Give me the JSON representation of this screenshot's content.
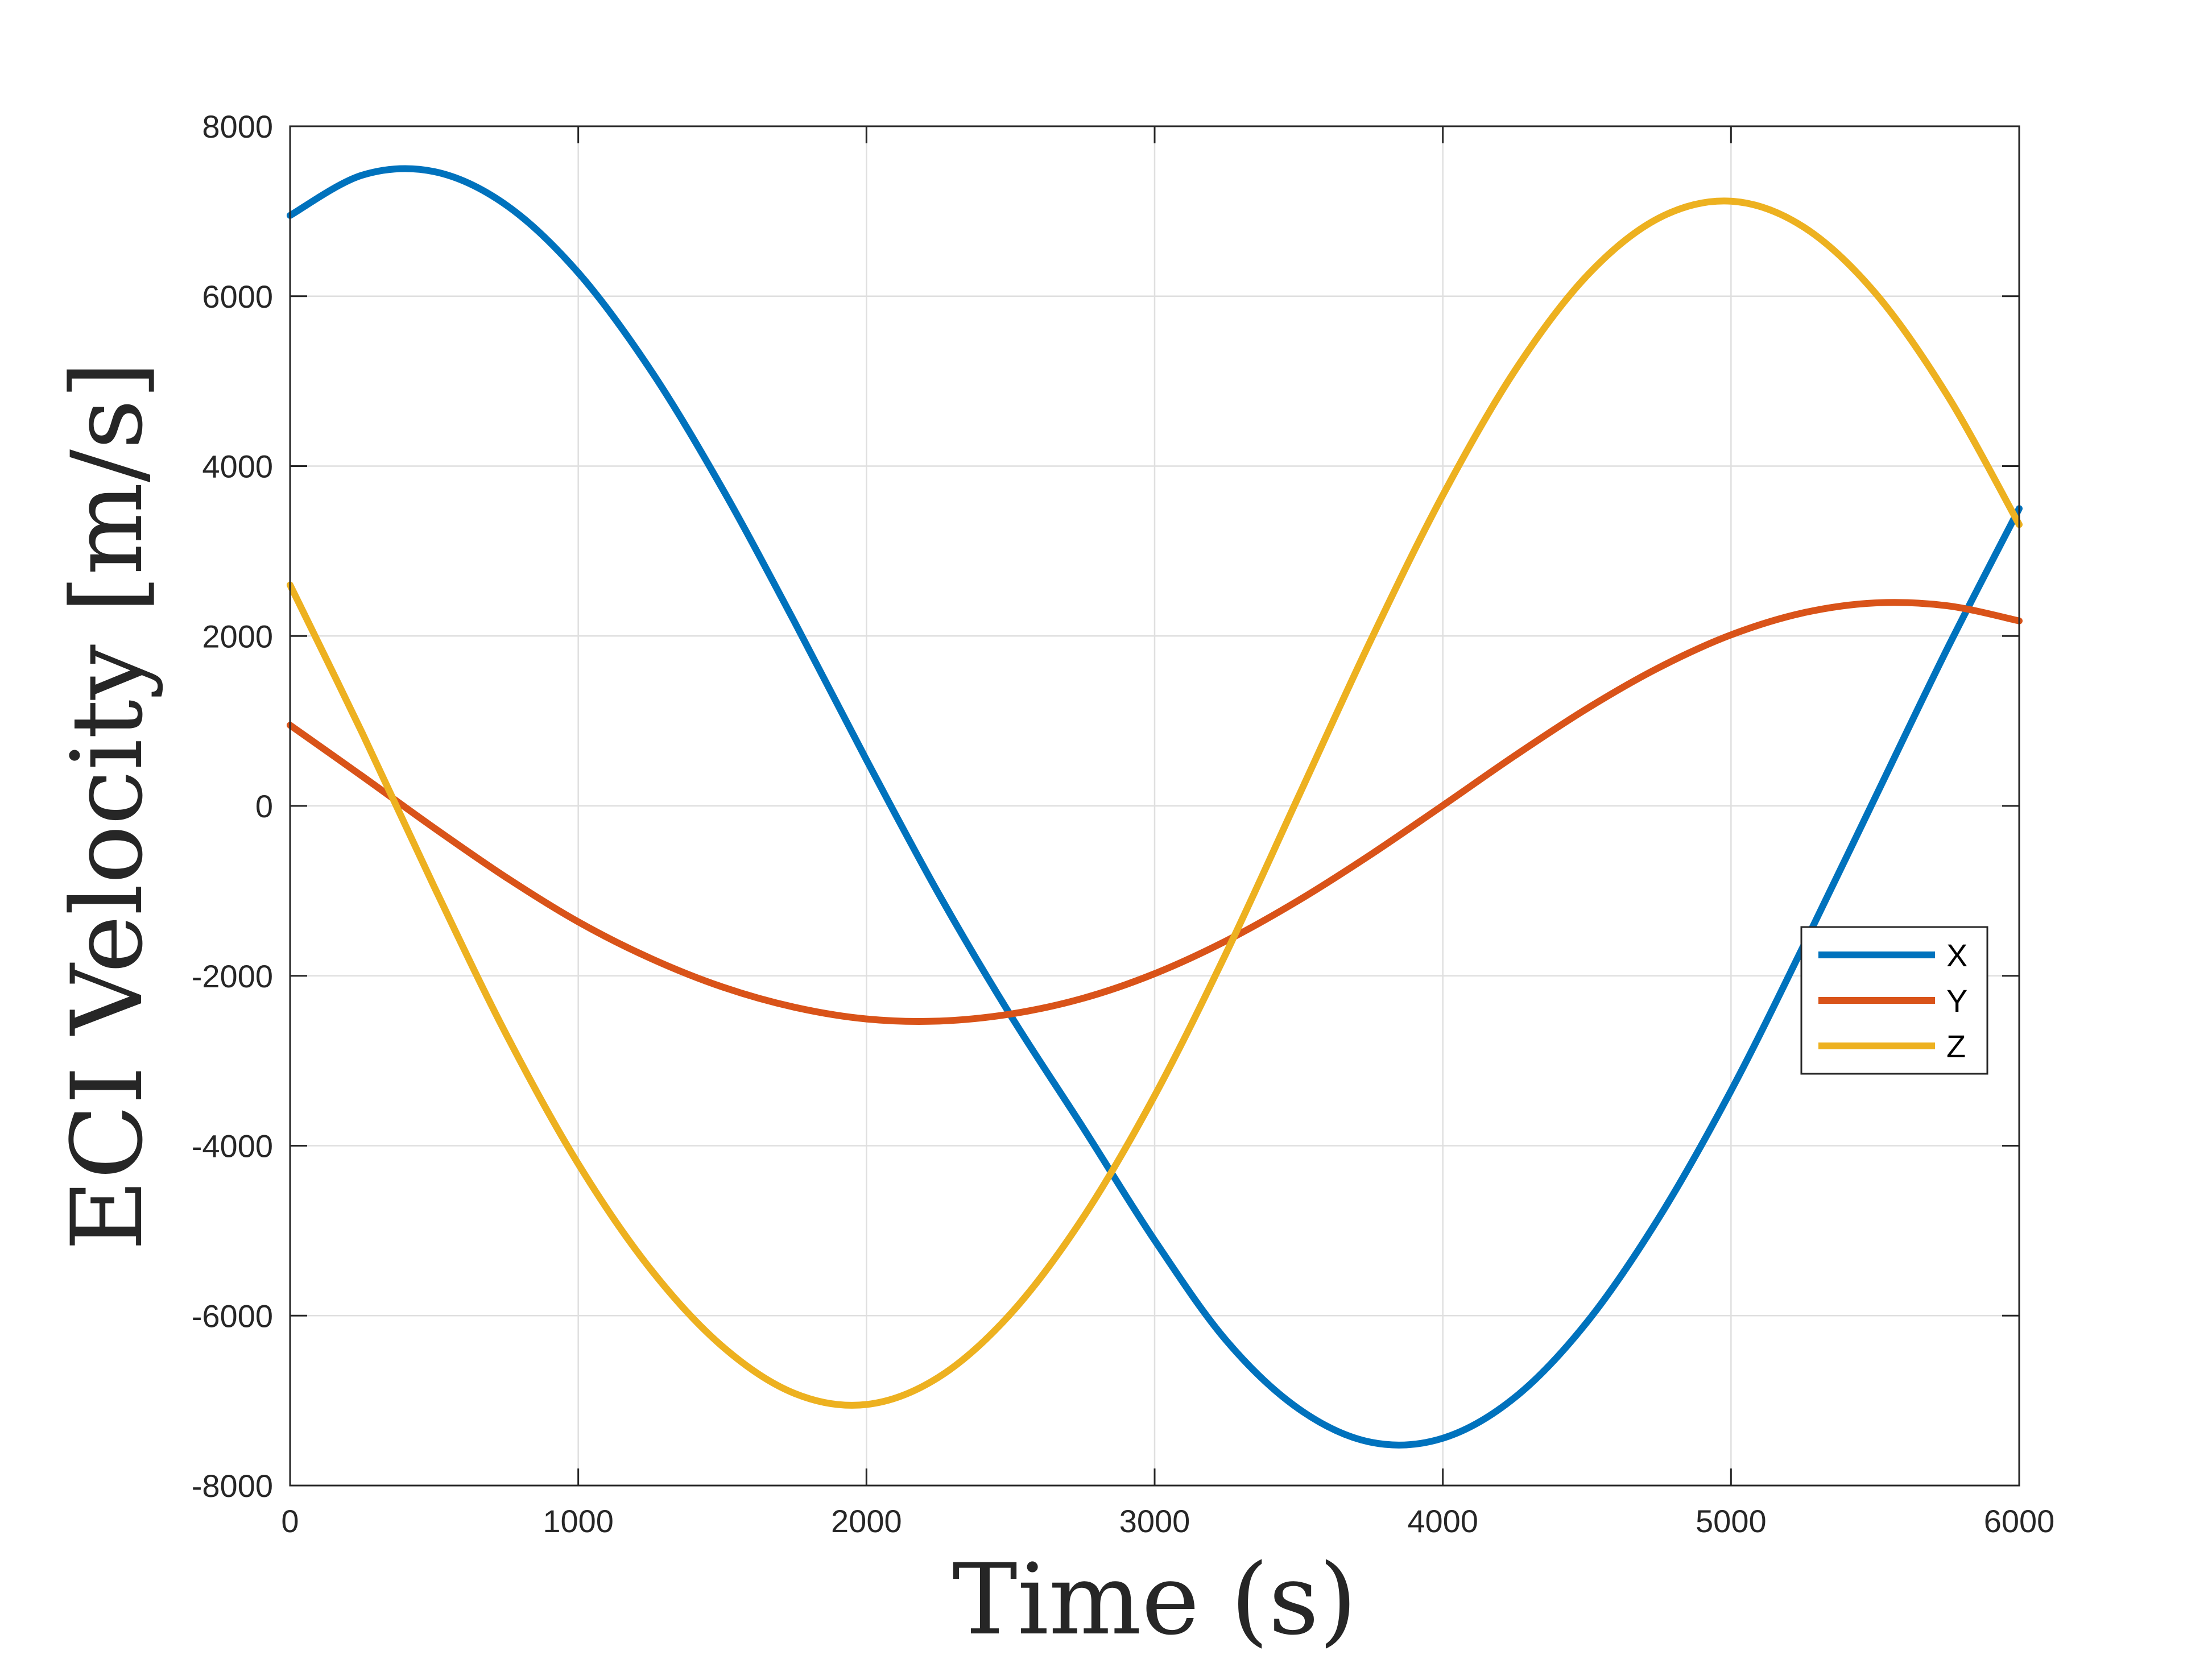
{
  "chart_data": {
    "type": "line",
    "xlabel": "Time (s)",
    "ylabel": "ECI Velocity [m/s]",
    "xlim": [
      0,
      6000
    ],
    "ylim": [
      -8000,
      8000
    ],
    "xticks": [
      "0",
      "1000",
      "2000",
      "3000",
      "4000",
      "5000",
      "6000"
    ],
    "yticks": [
      "-8000",
      "-6000",
      "-4000",
      "-2000",
      "0",
      "2000",
      "4000",
      "6000",
      "8000"
    ],
    "grid": true,
    "legend_position": "right",
    "x": [
      0,
      250,
      500,
      750,
      1000,
      1250,
      1500,
      1750,
      2000,
      2250,
      2500,
      2750,
      3000,
      3250,
      3500,
      3750,
      4000,
      4250,
      4500,
      4750,
      5000,
      5250,
      5500,
      5750,
      6000
    ],
    "series": [
      {
        "name": "X",
        "color": "#0072BD",
        "values": [
          6950,
          7424,
          7466,
          7072,
          6276,
          5136,
          3735,
          2168,
          542,
          -1031,
          -2464,
          -3778,
          -5113,
          -6299,
          -7097,
          -7490,
          -7443,
          -6963,
          -6078,
          -4847,
          -3353,
          -1658,
          97,
          1847,
          3500
        ]
      },
      {
        "name": "Y",
        "color": "#D95319",
        "values": [
          950,
          350,
          -260,
          -842,
          -1365,
          -1793,
          -2131,
          -2370,
          -2508,
          -2533,
          -2450,
          -2266,
          -1975,
          -1585,
          -1111,
          -573,
          5,
          591,
          1145,
          1628,
          2013,
          2272,
          2389,
          2356,
          2178
        ]
      },
      {
        "name": "Z",
        "color": "#EDB120",
        "values": [
          2600,
          860,
          -951,
          -2689,
          -4214,
          -5449,
          -6362,
          -6915,
          -7046,
          -6726,
          -5979,
          -4855,
          -3411,
          -1720,
          116,
          1950,
          3658,
          5123,
          6240,
          6920,
          7118,
          6818,
          6039,
          4837,
          3312
        ]
      }
    ]
  }
}
